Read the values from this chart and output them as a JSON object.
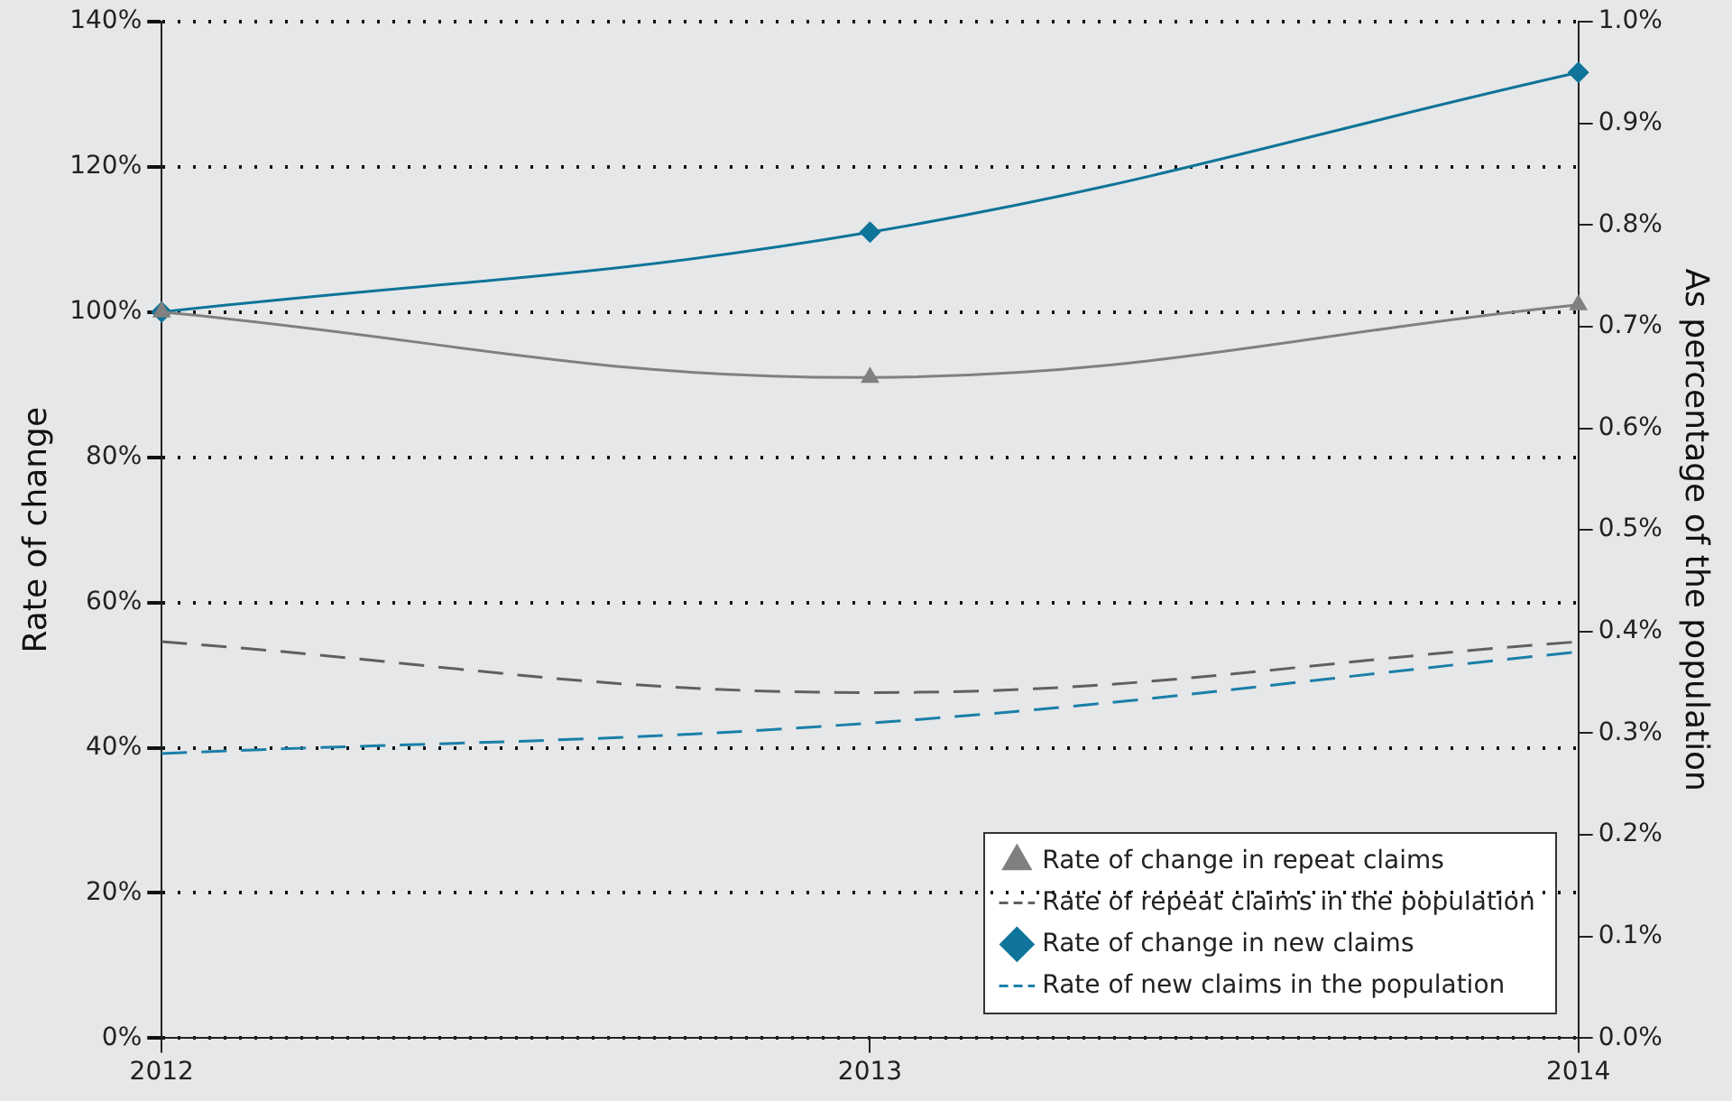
{
  "chart_data": {
    "type": "line",
    "ylabel": "Rate of change",
    "y2label": "As percentage of the population",
    "categories": [
      "2012",
      "2013",
      "2014"
    ],
    "series": [
      {
        "name": "Rate of change in repeat claims",
        "color": "#808080",
        "values": [
          100,
          91,
          101
        ],
        "marker": "triangle",
        "line_style": "solid"
      },
      {
        "name": "Rate of repeat claims in the population",
        "color": "#606060",
        "values": [
          0.39,
          0.34,
          0.39
        ],
        "axis": "y2",
        "marker": "none",
        "line_style": "dashed"
      },
      {
        "name": "Rate of change in new claims",
        "color": "#0e7499",
        "values": [
          100,
          111,
          133
        ],
        "marker": "diamond",
        "line_style": "solid"
      },
      {
        "name": "Rate of new claims in the population",
        "color": "#1a7fa8",
        "values": [
          0.28,
          0.31,
          0.38
        ],
        "axis": "y2",
        "marker": "none",
        "line_style": "dashed"
      }
    ],
    "ylim": [
      0,
      140
    ],
    "yticks": [
      {
        "value": 0,
        "label": "0%"
      },
      {
        "value": 20,
        "label": "20%"
      },
      {
        "value": 40,
        "label": "40%"
      },
      {
        "value": 60,
        "label": "60%"
      },
      {
        "value": 80,
        "label": "80%"
      },
      {
        "value": 100,
        "label": "100%"
      },
      {
        "value": 120,
        "label": "120%"
      },
      {
        "value": 140,
        "label": "140%"
      }
    ],
    "y2lim": [
      0,
      1
    ],
    "y2ticks": [
      {
        "value": 0,
        "label": "0.0%"
      },
      {
        "value": 0.1,
        "label": "0.1%"
      },
      {
        "value": 0.2,
        "label": "0.2%"
      },
      {
        "value": 0.3,
        "label": "0.3%"
      },
      {
        "value": 0.4,
        "label": "0.4%"
      },
      {
        "value": 0.5,
        "label": "0.5%"
      },
      {
        "value": 0.6,
        "label": "0.6%"
      },
      {
        "value": 0.7,
        "label": "0.7%"
      },
      {
        "value": 0.8,
        "label": "0.8%"
      },
      {
        "value": 0.9,
        "label": "0.9%"
      },
      {
        "value": 1,
        "label": "1.0%"
      }
    ],
    "grid": "y",
    "legend": "bottom right"
  }
}
